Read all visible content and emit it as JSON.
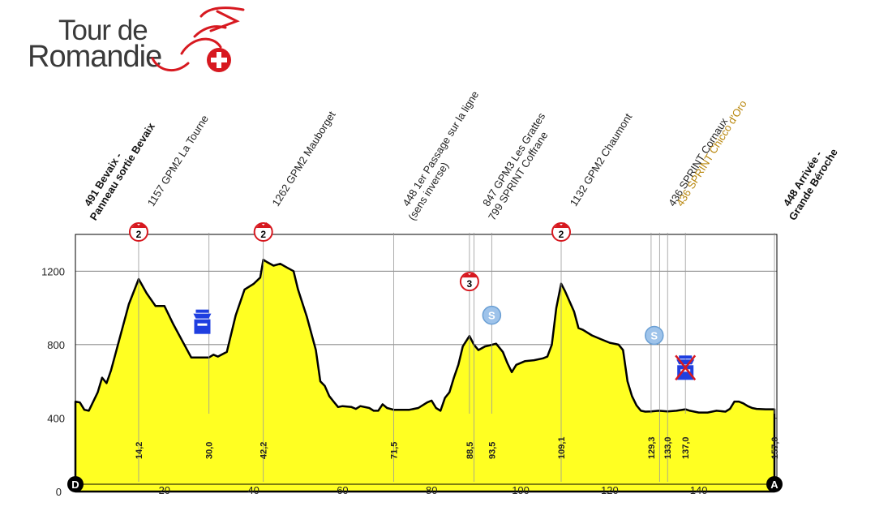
{
  "logo": {
    "line1": "Tour de",
    "line2": "Romandie"
  },
  "chart_data": {
    "type": "area",
    "fill_color": "#ffff22",
    "xlim": [
      0,
      157
    ],
    "ylim": [
      0,
      1400
    ],
    "x_ticks": [
      20,
      40,
      60,
      80,
      100,
      120,
      140
    ],
    "y_ticks": [
      0,
      400,
      800,
      1200
    ],
    "grid": true,
    "start_marker": "D",
    "end_marker": "A",
    "profile": [
      [
        0,
        490
      ],
      [
        1,
        485
      ],
      [
        2,
        445
      ],
      [
        3,
        440
      ],
      [
        5,
        540
      ],
      [
        6,
        620
      ],
      [
        7,
        590
      ],
      [
        8,
        660
      ],
      [
        10,
        840
      ],
      [
        12,
        1020
      ],
      [
        14.2,
        1157
      ],
      [
        16,
        1080
      ],
      [
        18,
        1010
      ],
      [
        20,
        1010
      ],
      [
        22,
        910
      ],
      [
        24,
        820
      ],
      [
        26,
        730
      ],
      [
        28,
        730
      ],
      [
        30,
        730
      ],
      [
        31,
        745
      ],
      [
        32,
        735
      ],
      [
        34,
        760
      ],
      [
        36,
        960
      ],
      [
        38,
        1100
      ],
      [
        40,
        1130
      ],
      [
        41.5,
        1165
      ],
      [
        42.2,
        1262
      ],
      [
        43,
        1250
      ],
      [
        44.5,
        1230
      ],
      [
        46,
        1240
      ],
      [
        47.5,
        1220
      ],
      [
        49,
        1200
      ],
      [
        50,
        1100
      ],
      [
        52,
        950
      ],
      [
        54,
        770
      ],
      [
        55,
        600
      ],
      [
        56,
        575
      ],
      [
        57,
        520
      ],
      [
        58,
        490
      ],
      [
        59,
        460
      ],
      [
        60,
        465
      ],
      [
        62,
        460
      ],
      [
        63,
        450
      ],
      [
        64,
        465
      ],
      [
        66,
        455
      ],
      [
        67,
        440
      ],
      [
        68,
        440
      ],
      [
        69,
        475
      ],
      [
        70,
        455
      ],
      [
        71.5,
        445
      ],
      [
        73,
        445
      ],
      [
        75,
        445
      ],
      [
        77,
        455
      ],
      [
        79,
        485
      ],
      [
        80,
        495
      ],
      [
        81,
        455
      ],
      [
        82,
        440
      ],
      [
        83,
        510
      ],
      [
        84,
        540
      ],
      [
        85,
        620
      ],
      [
        86,
        690
      ],
      [
        87,
        790
      ],
      [
        88.5,
        847
      ],
      [
        89.5,
        800
      ],
      [
        90.5,
        770
      ],
      [
        92,
        790
      ],
      [
        93.5,
        799
      ],
      [
        94.5,
        805
      ],
      [
        96,
        760
      ],
      [
        97,
        700
      ],
      [
        98,
        650
      ],
      [
        99,
        690
      ],
      [
        101,
        710
      ],
      [
        103,
        715
      ],
      [
        105,
        725
      ],
      [
        106,
        735
      ],
      [
        107,
        800
      ],
      [
        108,
        1000
      ],
      [
        109.1,
        1132
      ],
      [
        110,
        1090
      ],
      [
        112,
        980
      ],
      [
        113,
        890
      ],
      [
        114,
        880
      ],
      [
        116,
        850
      ],
      [
        118,
        830
      ],
      [
        120,
        810
      ],
      [
        122,
        800
      ],
      [
        123,
        770
      ],
      [
        124,
        600
      ],
      [
        125,
        520
      ],
      [
        126,
        470
      ],
      [
        127,
        440
      ],
      [
        128,
        435
      ],
      [
        129.3,
        436
      ],
      [
        131,
        440
      ],
      [
        133,
        436
      ],
      [
        135,
        440
      ],
      [
        137,
        448
      ],
      [
        138,
        440
      ],
      [
        140,
        430
      ],
      [
        142,
        430
      ],
      [
        144,
        440
      ],
      [
        146,
        435
      ],
      [
        147,
        450
      ],
      [
        148,
        490
      ],
      [
        149,
        490
      ],
      [
        150,
        480
      ],
      [
        151,
        465
      ],
      [
        152,
        455
      ],
      [
        153,
        450
      ],
      [
        155,
        448
      ],
      [
        157,
        448
      ]
    ],
    "annotations": [
      {
        "km": 0,
        "lines": [
          "491 Bevaix -",
          "Panneau sortie Bevaix"
        ],
        "style": "bold",
        "grid": false
      },
      {
        "km": 14.2,
        "lines": [
          "1157 GPM2 La Tourne"
        ],
        "style": "normal",
        "grid": true
      },
      {
        "km": 42.2,
        "lines": [
          "1262 GPM2 Mauborget"
        ],
        "style": "normal",
        "grid": true
      },
      {
        "km": 71.5,
        "lines": [
          "448 1er Passage sur la ligne",
          "(sens inverse)"
        ],
        "style": "normal",
        "grid": true
      },
      {
        "km": 89.5,
        "lines": [
          "847 GPM3 Les Grattes",
          "799 SPRINT Coffrane"
        ],
        "style": "normal",
        "grid": true
      },
      {
        "km": 109.1,
        "lines": [
          "1132 GPM2 Chaumont"
        ],
        "style": "normal",
        "grid": true
      },
      {
        "km": 131.2,
        "lines": [
          "436 SPRINT Cornaux"
        ],
        "style": "normal",
        "grid": true
      },
      {
        "km": 133.0,
        "lines": [
          "436 SPRINT Chicco d'Oro"
        ],
        "style": "gold",
        "grid": true
      },
      {
        "km": 157.0,
        "lines": [
          "448 Arrivée -",
          "Grande Béroche"
        ],
        "style": "bold",
        "grid": false
      }
    ],
    "km_labels": [
      {
        "km": 14.2,
        "text": "14,2"
      },
      {
        "km": 30.0,
        "text": "30,0"
      },
      {
        "km": 42.2,
        "text": "42,2"
      },
      {
        "km": 71.5,
        "text": "71,5"
      },
      {
        "km": 88.5,
        "text": "88,5"
      },
      {
        "km": 93.5,
        "text": "93,5"
      },
      {
        "km": 109.1,
        "text": "109,1"
      },
      {
        "km": 129.3,
        "text": "129,3"
      },
      {
        "km": 133.0,
        "text": "133,0"
      },
      {
        "km": 137.0,
        "text": "137,0"
      },
      {
        "km": 157.0,
        "text": "157,0"
      }
    ],
    "climbs": [
      {
        "km": 14.2,
        "category": "2",
        "elev": 1400
      },
      {
        "km": 42.2,
        "category": "2",
        "elev": 1400
      },
      {
        "km": 88.5,
        "category": "3",
        "elev": 1130
      },
      {
        "km": 109.1,
        "category": "2",
        "elev": 1400
      }
    ],
    "sprints": [
      {
        "km": 93.5,
        "label": "S",
        "elev": 960
      },
      {
        "km": 130.0,
        "label": "S",
        "elev": 850
      }
    ],
    "feed_zones": [
      {
        "km": 28.5,
        "elev": 920
      },
      {
        "km": 137.0,
        "elev": 670,
        "crossed": true
      }
    ],
    "colors": {
      "climb": "#d71920",
      "sprint": "#9ec3ea",
      "feed": "#1f3fe0",
      "gold": "#b8860b"
    }
  }
}
